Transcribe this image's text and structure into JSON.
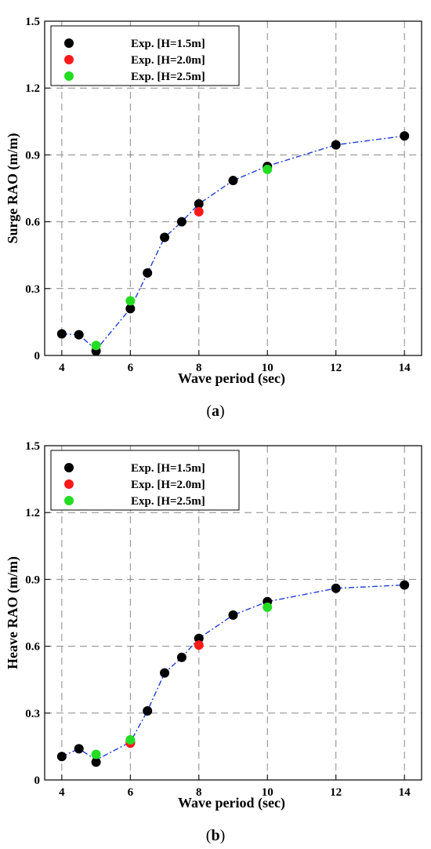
{
  "chart_data": [
    {
      "type": "scatter",
      "caption": "a",
      "xlabel": "Wave period (sec)",
      "ylabel": "Surge RAO (m/m)",
      "xlim": [
        3.5,
        14.5
      ],
      "ylim": [
        0,
        1.5
      ],
      "xticks": [
        "4",
        "6",
        "8",
        "10",
        "12",
        "14"
      ],
      "yticks": [
        "0",
        "0.3",
        "0.6",
        "0.9",
        "1.2",
        "1.5"
      ],
      "grid": true,
      "legend_position": "top-left",
      "trend_line": {
        "color": "#1f3fd6",
        "style": "dash-dot",
        "x": [
          4,
          4.5,
          5,
          6,
          6.5,
          7,
          7.5,
          8,
          9,
          10,
          12,
          14
        ],
        "y": [
          0.097,
          0.093,
          0.025,
          0.21,
          0.37,
          0.53,
          0.6,
          0.68,
          0.785,
          0.85,
          0.945,
          0.985
        ]
      },
      "series": [
        {
          "name": "Exp. [H=1.5m]",
          "color": "#000000",
          "x": [
            4,
            4.5,
            5,
            6,
            6.5,
            7,
            7.5,
            8,
            9,
            10,
            12,
            14
          ],
          "y": [
            0.097,
            0.093,
            0.02,
            0.21,
            0.37,
            0.53,
            0.6,
            0.68,
            0.785,
            0.848,
            0.945,
            0.985
          ]
        },
        {
          "name": "Exp. [H=2.0m]",
          "color": "#ff1a1a",
          "x": [
            8
          ],
          "y": [
            0.645
          ]
        },
        {
          "name": "Exp. [H=2.5m]",
          "color": "#22dd22",
          "x": [
            5,
            6,
            10
          ],
          "y": [
            0.045,
            0.245,
            0.835
          ]
        }
      ]
    },
    {
      "type": "scatter",
      "caption": "b",
      "xlabel": "Wave period (sec)",
      "ylabel": "Heave RAO (m/m)",
      "xlim": [
        3.5,
        14.5
      ],
      "ylim": [
        0,
        1.5
      ],
      "xticks": [
        "4",
        "6",
        "8",
        "10",
        "12",
        "14"
      ],
      "yticks": [
        "0",
        "0.3",
        "0.6",
        "0.9",
        "1.2",
        "1.5"
      ],
      "grid": true,
      "legend_position": "top-left",
      "trend_line": {
        "color": "#1f3fd6",
        "style": "dash-dot",
        "x": [
          4,
          4.5,
          5,
          6,
          6.5,
          7,
          7.5,
          8,
          9,
          10,
          12,
          14
        ],
        "y": [
          0.105,
          0.14,
          0.09,
          0.17,
          0.31,
          0.48,
          0.55,
          0.635,
          0.74,
          0.8,
          0.86,
          0.875
        ]
      },
      "series": [
        {
          "name": "Exp. [H=1.5m]",
          "color": "#000000",
          "x": [
            4,
            4.5,
            5,
            6,
            6.5,
            7,
            7.5,
            8,
            9,
            10,
            12,
            14
          ],
          "y": [
            0.105,
            0.14,
            0.08,
            0.17,
            0.31,
            0.48,
            0.55,
            0.635,
            0.74,
            0.8,
            0.86,
            0.875
          ]
        },
        {
          "name": "Exp. [H=2.0m]",
          "color": "#ff1a1a",
          "x": [
            6,
            8
          ],
          "y": [
            0.165,
            0.605
          ]
        },
        {
          "name": "Exp. [H=2.5m]",
          "color": "#22dd22",
          "x": [
            5,
            6,
            10
          ],
          "y": [
            0.115,
            0.18,
            0.775
          ]
        }
      ]
    }
  ]
}
